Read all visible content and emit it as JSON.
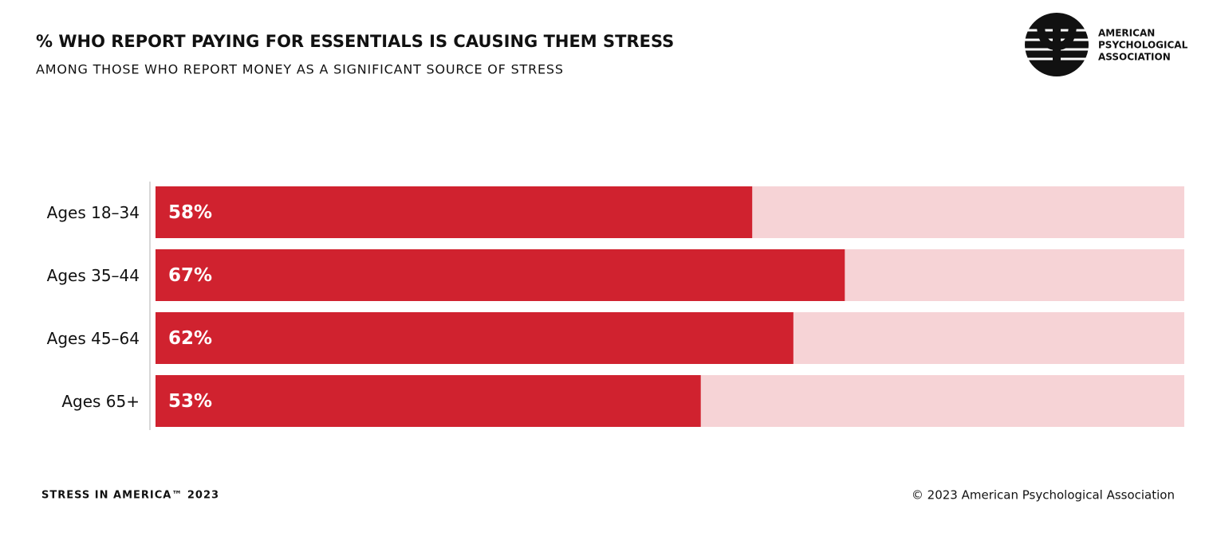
{
  "chart_data": {
    "type": "hbar",
    "title": "% WHO REPORT PAYING FOR ESSENTIALS IS CAUSING THEM STRESS",
    "subtitle": "AMONG THOSE WHO REPORT MONEY AS A SIGNIFICANT SOURCE OF STRESS",
    "categories": [
      "Ages 18–34",
      "Ages 35–44",
      "Ages 45–64",
      "Ages 65+"
    ],
    "values": [
      58,
      67,
      62,
      53
    ],
    "value_labels": [
      "58%",
      "67%",
      "62%",
      "53%"
    ],
    "color": "#d0222f",
    "track_color": "#f6d3d6",
    "xlim": [
      0,
      100
    ],
    "logo_text": [
      "AMERICAN",
      "PSYCHOLOGICAL",
      "ASSOCIATION"
    ],
    "footer_left": "STRESS IN AMERICA™ 2023",
    "footer_right": "© 2023 American Psychological Association"
  }
}
